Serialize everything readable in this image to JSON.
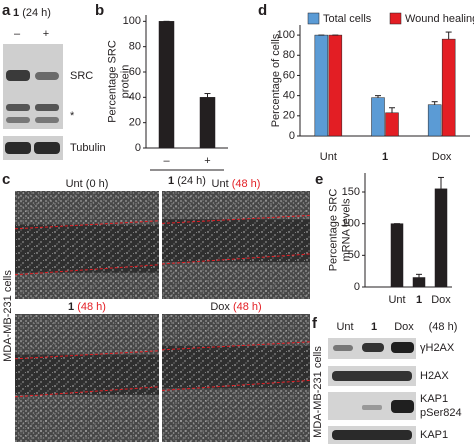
{
  "panels": {
    "a": {
      "letter": "a",
      "treatment": "1",
      "time": "(24 h)",
      "lanes": [
        "–",
        "+"
      ],
      "labels": [
        "SRC",
        "*",
        "Tubulin"
      ]
    },
    "c": {
      "letter": "c",
      "side_label": "MDA-MB-231 cells",
      "images": [
        {
          "name": "Unt",
          "time": "(0 h)",
          "time_color": "#222222"
        },
        {
          "name": "Unt",
          "time": "(48 h)",
          "time_color": "#e31e24"
        },
        {
          "name": "1",
          "time": "(48 h)",
          "time_color": "#e31e24"
        },
        {
          "name": "Dox",
          "time": "(48 h)",
          "time_color": "#e31e24"
        }
      ]
    },
    "f": {
      "letter": "f",
      "side_label": "MDA-MB-231 cells",
      "lanes": [
        "Unt",
        "1",
        "Dox"
      ],
      "time": "(48 h)",
      "labels": [
        "γH2AX",
        "H2AX",
        "KAP1",
        "pSer824",
        "KAP1"
      ]
    }
  },
  "chart_data": [
    {
      "type": "bar",
      "panel_label": "b",
      "y_label": [
        "Percentage SRC",
        "protein"
      ],
      "categories": [
        "–",
        "+"
      ],
      "values": [
        100,
        40
      ],
      "errors": [
        0,
        3
      ],
      "color": "#231f20",
      "x_label": [
        "1",
        "(24 h)"
      ],
      "ylim": [
        0,
        105
      ],
      "yticks": [
        0,
        20,
        40,
        60,
        80,
        100
      ]
    },
    {
      "type": "bar",
      "panel_label": "d",
      "y_label": [
        "Percentage of cells"
      ],
      "categories": [
        "Unt",
        "1",
        "Dox"
      ],
      "series": [
        {
          "name": "Total cells",
          "color": "#5b9bd5",
          "values": [
            100,
            38,
            31
          ],
          "errors": [
            0,
            2,
            3
          ]
        },
        {
          "name": "Wound healing",
          "color": "#e31e24",
          "values": [
            100,
            23,
            96
          ],
          "errors": [
            0,
            5,
            7
          ]
        }
      ],
      "ylim": [
        0,
        110
      ],
      "yticks": [
        0,
        20,
        40,
        60,
        80,
        100
      ]
    },
    {
      "type": "bar",
      "panel_label": "e",
      "y_label": [
        "Percentage SRC",
        "mRNA levels"
      ],
      "categories": [
        "Unt",
        "1",
        "Dox"
      ],
      "values": [
        100,
        15,
        155
      ],
      "errors": [
        0,
        5,
        18
      ],
      "color": "#231f20",
      "ylim": [
        0,
        180
      ],
      "yticks": [
        0,
        50,
        100,
        150
      ]
    }
  ]
}
